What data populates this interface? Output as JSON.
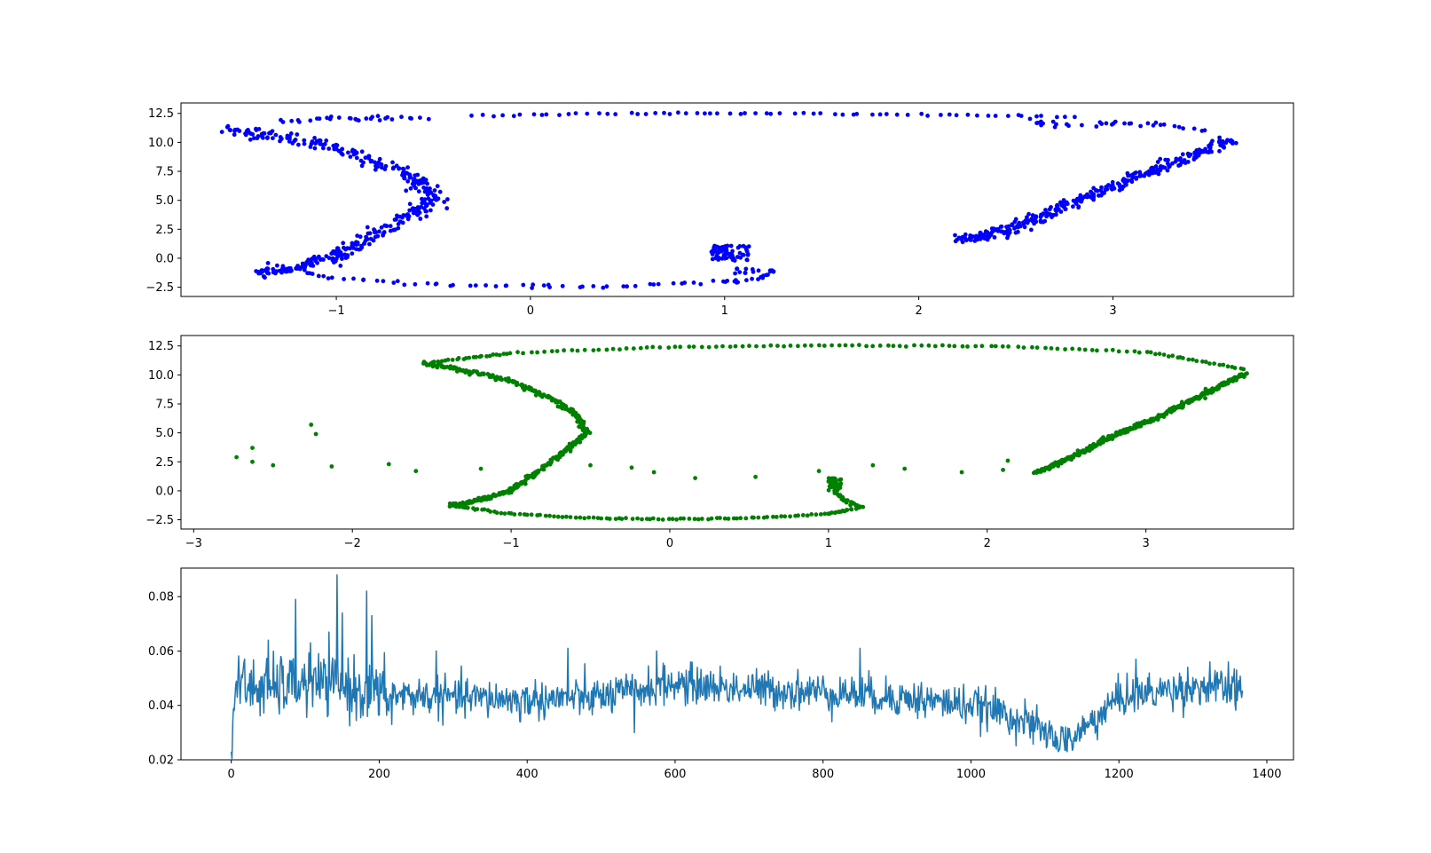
{
  "chart_data": [
    {
      "type": "scatter",
      "color": "#0000ff",
      "xlim": [
        -1.8,
        3.93
      ],
      "ylim": [
        -3.3,
        13.4
      ],
      "xticks": [
        -1,
        0,
        1,
        2,
        3
      ],
      "yticks": [
        -2.5,
        0.0,
        2.5,
        5.0,
        7.5,
        10.0,
        12.5
      ],
      "xtick_labels": [
        "−1",
        "0",
        "1",
        "2",
        "3"
      ],
      "ytick_labels": [
        "−2.5",
        "0.0",
        "2.5",
        "5.0",
        "7.5",
        "10.0",
        "12.5"
      ],
      "shape_anchors": {
        "left_arc": [
          [
            -1.55,
            11.1
          ],
          [
            -1.3,
            10.5
          ],
          [
            -1.0,
            9.5
          ],
          [
            -0.75,
            8.0
          ],
          [
            -0.55,
            6.5
          ],
          [
            -0.5,
            5.0
          ],
          [
            -0.65,
            3.5
          ],
          [
            -0.85,
            1.5
          ],
          [
            -1.0,
            0.2
          ],
          [
            -1.2,
            -0.8
          ],
          [
            -1.4,
            -1.3
          ]
        ],
        "bottom_arc": [
          [
            -1.3,
            -0.8
          ],
          [
            -1.0,
            -1.8
          ],
          [
            -0.5,
            -2.3
          ],
          [
            0.0,
            -2.45
          ],
          [
            0.5,
            -2.4
          ],
          [
            1.0,
            -2.1
          ],
          [
            1.2,
            -1.7
          ]
        ],
        "right_line": [
          [
            2.22,
            1.6
          ],
          [
            2.45,
            2.4
          ],
          [
            2.7,
            4.1
          ],
          [
            3.0,
            6.2
          ],
          [
            3.3,
            8.2
          ],
          [
            3.6,
            10.2
          ]
        ],
        "top_arc": [
          [
            -0.3,
            12.3
          ],
          [
            0.5,
            12.5
          ],
          [
            1.2,
            12.5
          ],
          [
            2.0,
            12.4
          ],
          [
            2.8,
            12.2
          ]
        ],
        "upper_left_fragments": [
          [
            -1.3,
            11.8
          ],
          [
            -1.0,
            12.0
          ],
          [
            -0.8,
            12.1
          ],
          [
            -0.55,
            12.0
          ]
        ],
        "upper_right_fragments": [
          [
            2.6,
            11.8
          ],
          [
            2.7,
            11.4
          ],
          [
            3.0,
            11.6
          ],
          [
            3.2,
            11.6
          ],
          [
            3.5,
            11.1
          ]
        ]
      }
    },
    {
      "type": "scatter",
      "color": "#008000",
      "xlim": [
        -3.08,
        3.93
      ],
      "ylim": [
        -3.3,
        13.4
      ],
      "xticks": [
        -3,
        -2,
        -1,
        0,
        1,
        2,
        3
      ],
      "yticks": [
        -2.5,
        0.0,
        2.5,
        5.0,
        7.5,
        10.0,
        12.5
      ],
      "xtick_labels": [
        "−3",
        "−2",
        "−1",
        "0",
        "1",
        "2",
        "3"
      ],
      "ytick_labels": [
        "−2.5",
        "0.0",
        "2.5",
        "5.0",
        "7.5",
        "10.0",
        "12.5"
      ],
      "shape_anchors": {
        "left_arc": [
          [
            -1.55,
            11.0
          ],
          [
            -1.3,
            10.4
          ],
          [
            -1.0,
            9.5
          ],
          [
            -0.75,
            8.0
          ],
          [
            -0.58,
            6.5
          ],
          [
            -0.53,
            5.0
          ],
          [
            -0.65,
            3.5
          ],
          [
            -0.85,
            1.5
          ],
          [
            -1.0,
            0.0
          ],
          [
            -1.2,
            -0.8
          ],
          [
            -1.37,
            -1.3
          ]
        ],
        "bottom_arc": [
          [
            -1.37,
            -1.3
          ],
          [
            -1.0,
            -2.0
          ],
          [
            -0.5,
            -2.35
          ],
          [
            0.0,
            -2.45
          ],
          [
            0.5,
            -2.35
          ],
          [
            1.0,
            -2.0
          ],
          [
            1.2,
            -1.4
          ]
        ],
        "right_line": [
          [
            2.3,
            1.5
          ],
          [
            2.55,
            3.0
          ],
          [
            2.8,
            4.8
          ],
          [
            3.05,
            6.2
          ],
          [
            3.35,
            8.2
          ],
          [
            3.62,
            10.1
          ]
        ],
        "top_arc": [
          [
            -1.5,
            11.1
          ],
          [
            -1.0,
            11.9
          ],
          [
            0.0,
            12.4
          ],
          [
            1.0,
            12.55
          ],
          [
            2.0,
            12.5
          ],
          [
            3.0,
            12.0
          ],
          [
            3.62,
            10.5
          ]
        ],
        "sparse_points": [
          [
            -2.73,
            2.9
          ],
          [
            -2.63,
            3.7
          ],
          [
            -2.63,
            2.5
          ],
          [
            -2.5,
            2.2
          ],
          [
            -2.26,
            5.7
          ],
          [
            -2.23,
            4.9
          ],
          [
            -2.13,
            2.1
          ],
          [
            -1.77,
            2.3
          ],
          [
            -1.6,
            1.7
          ],
          [
            -1.19,
            1.9
          ],
          [
            -0.5,
            2.2
          ],
          [
            -0.24,
            2.0
          ],
          [
            -0.1,
            1.6
          ],
          [
            0.16,
            1.1
          ],
          [
            0.54,
            1.2
          ],
          [
            0.94,
            1.7
          ],
          [
            1.28,
            2.2
          ],
          [
            1.48,
            1.9
          ],
          [
            1.84,
            1.6
          ],
          [
            2.1,
            1.8
          ],
          [
            2.13,
            2.6
          ]
        ]
      }
    },
    {
      "type": "line",
      "color": "#1f77b4",
      "xlim": [
        -68,
        1436
      ],
      "ylim": [
        0.02,
        0.0905
      ],
      "xticks": [
        0,
        200,
        400,
        600,
        800,
        1000,
        1200,
        1400
      ],
      "yticks": [
        0.02,
        0.04,
        0.06,
        0.08
      ],
      "xtick_labels": [
        "0",
        "200",
        "400",
        "600",
        "800",
        "1000",
        "1200",
        "1400"
      ],
      "ytick_labels": [
        "0.02",
        "0.04",
        "0.06",
        "0.08"
      ],
      "n_points": 1368,
      "trend": [
        [
          0,
          0.023
        ],
        [
          5,
          0.047
        ],
        [
          50,
          0.046
        ],
        [
          100,
          0.048
        ],
        [
          150,
          0.047
        ],
        [
          200,
          0.044
        ],
        [
          300,
          0.043
        ],
        [
          400,
          0.042
        ],
        [
          500,
          0.043
        ],
        [
          600,
          0.048
        ],
        [
          700,
          0.046
        ],
        [
          800,
          0.045
        ],
        [
          900,
          0.043
        ],
        [
          1000,
          0.04
        ],
        [
          1050,
          0.037
        ],
        [
          1100,
          0.03
        ],
        [
          1130,
          0.026
        ],
        [
          1160,
          0.033
        ],
        [
          1200,
          0.043
        ],
        [
          1300,
          0.047
        ],
        [
          1368,
          0.045
        ]
      ],
      "spikes": [
        [
          18,
          0.057
        ],
        [
          50,
          0.064
        ],
        [
          67,
          0.058
        ],
        [
          87,
          0.079
        ],
        [
          107,
          0.063
        ],
        [
          125,
          0.057
        ],
        [
          143,
          0.088
        ],
        [
          150,
          0.074
        ],
        [
          183,
          0.082
        ],
        [
          190,
          0.073
        ],
        [
          277,
          0.06
        ],
        [
          455,
          0.061
        ],
        [
          575,
          0.06
        ],
        [
          850,
          0.061
        ],
        [
          1223,
          0.057
        ],
        [
          1323,
          0.056
        ],
        [
          1348,
          0.056
        ],
        [
          1051,
          0.031
        ],
        [
          1118,
          0.023
        ],
        [
          1130,
          0.023
        ],
        [
          545,
          0.03
        ],
        [
          390,
          0.034
        ],
        [
          217,
          0.033
        ]
      ]
    }
  ]
}
